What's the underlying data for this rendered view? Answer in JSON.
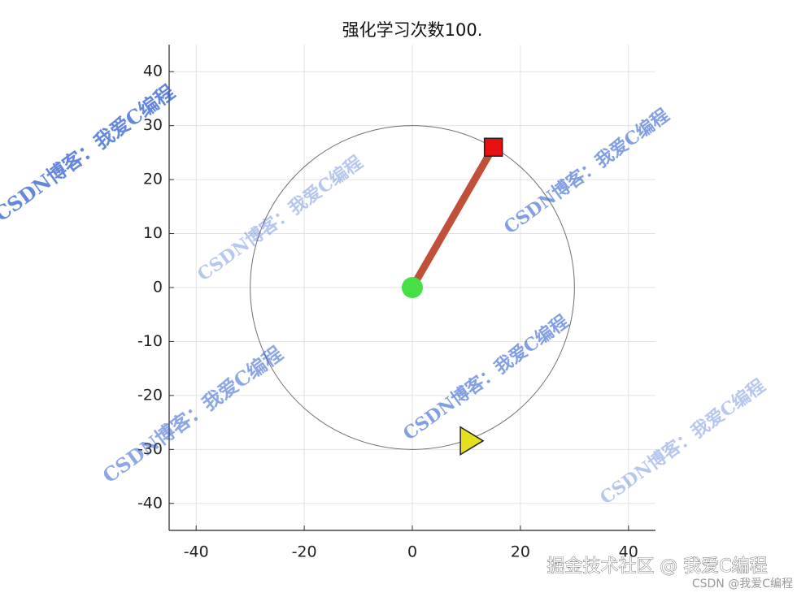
{
  "chart_data": {
    "type": "scatter",
    "title": "强化学习次数100.",
    "xlim": [
      -45,
      45
    ],
    "ylim": [
      -45,
      45
    ],
    "xticks": [
      -40,
      -20,
      0,
      20,
      40
    ],
    "yticks": [
      -40,
      -30,
      -20,
      -10,
      0,
      10,
      20,
      30,
      40
    ],
    "grid": true,
    "circle": {
      "center": [
        0,
        0
      ],
      "radius": 30,
      "color": "#6e6e6e"
    },
    "rod": {
      "x": [
        0,
        15
      ],
      "y": [
        0,
        26
      ],
      "color": "#c1503a"
    },
    "markers": [
      {
        "shape": "circle",
        "x": 0,
        "y": 0,
        "color": "#46e046"
      },
      {
        "shape": "square",
        "x": 15,
        "y": 26,
        "color": "#e81010"
      },
      {
        "shape": "triangle",
        "x": 10.7,
        "y": -28.4,
        "color": "#e4e01e"
      }
    ]
  },
  "watermarks": [
    "CSDN博客：我爱C编程",
    "CSDN博客：我爱C编程",
    "CSDN博客：我爱C编程",
    "CSDN博客：我爱C编程",
    "CSDN博客：我爱C编程",
    "CSDN博客：我爱C编程"
  ],
  "footer": {
    "main": "掘金技术社区 @ 我爱C编程",
    "sub": "CSDN @我爱C编程"
  }
}
